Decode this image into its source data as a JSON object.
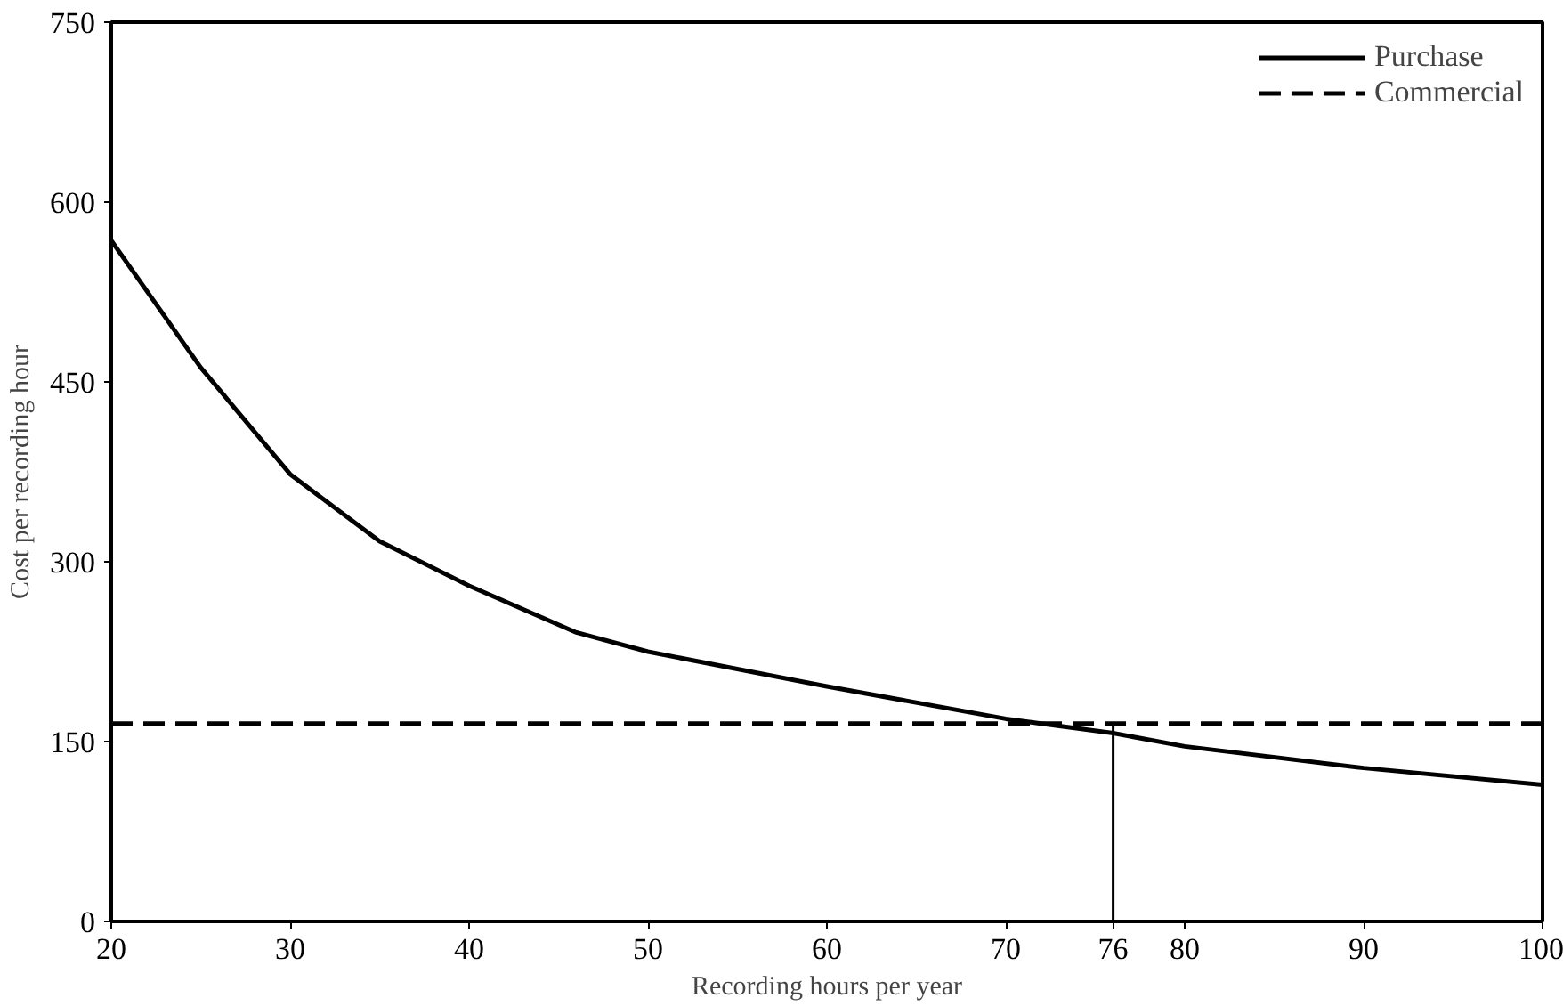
{
  "chart_data": {
    "type": "line",
    "xlabel": "Recording hours per year",
    "ylabel": "Cost per recording hour",
    "x": [
      20,
      25,
      30,
      35,
      40,
      46,
      50,
      60,
      70,
      76,
      80,
      90,
      100
    ],
    "series": [
      {
        "name": "Purchase",
        "color": "#000000",
        "line_style": "solid",
        "values": [
          568,
          462,
          373,
          317,
          280,
          241,
          225,
          196,
          169,
          157,
          146,
          128,
          114
        ]
      },
      {
        "name": "Commercial",
        "color": "#000000",
        "line_style": "dashed",
        "x": [
          20,
          100
        ],
        "values": [
          165,
          165
        ]
      }
    ],
    "ref_lines": [
      {
        "axis": "x",
        "value": 76,
        "color": "#000000"
      }
    ],
    "xlim": [
      20,
      100
    ],
    "ylim": [
      0,
      750
    ],
    "xticks": [
      20,
      30,
      40,
      50,
      60,
      70,
      76,
      80,
      90,
      100
    ],
    "yticks": [
      0,
      150,
      300,
      450,
      600,
      750
    ],
    "grid": false,
    "legend": "top right",
    "marker": "none"
  }
}
